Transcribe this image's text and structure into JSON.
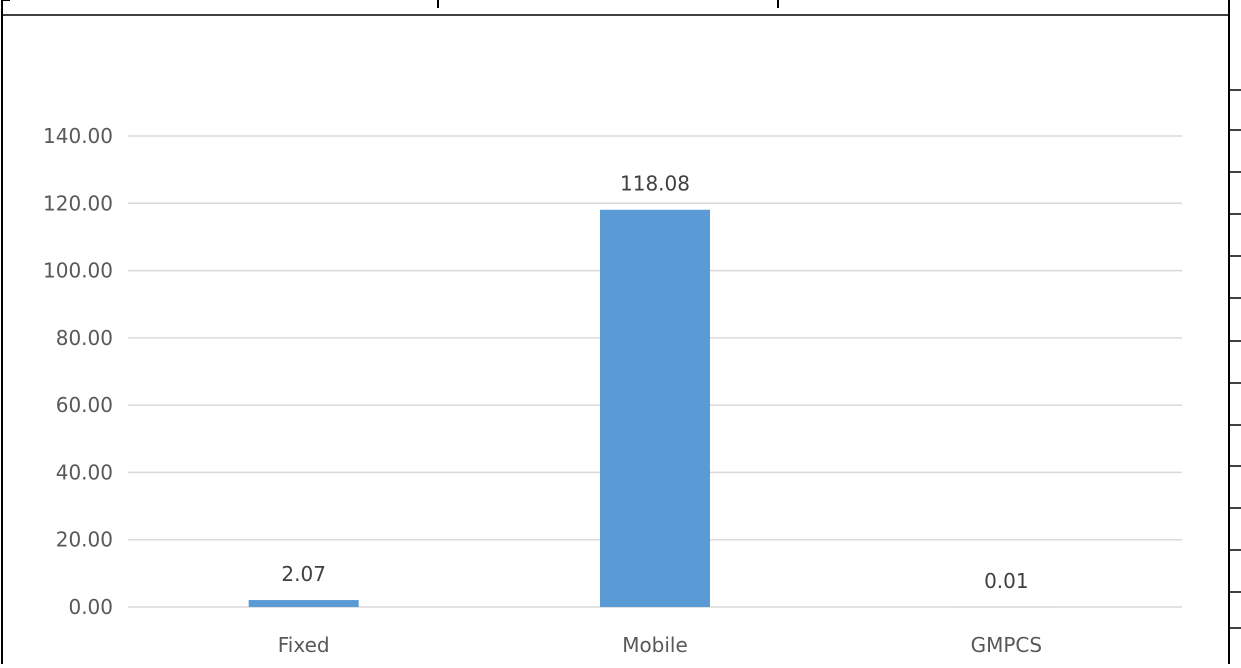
{
  "chart_data": {
    "type": "bar",
    "categories": [
      "Fixed",
      "Mobile",
      "GMPCS"
    ],
    "values": [
      2.07,
      118.08,
      0.01
    ],
    "data_labels": [
      "2.07",
      "118.08",
      "0.01"
    ],
    "title": "",
    "xlabel": "",
    "ylabel": "",
    "ylim": [
      0,
      140
    ],
    "yticks": [
      0,
      20,
      40,
      60,
      80,
      100,
      120,
      140
    ],
    "ytick_labels": [
      "0.00",
      "20.00",
      "40.00",
      "60.00",
      "80.00",
      "100.00",
      "120.00",
      "140.00"
    ],
    "grid": true,
    "legend": "none",
    "bar_color": "#5b9bd5",
    "grid_color": "#d9d9d9",
    "text_color": "#595959"
  }
}
